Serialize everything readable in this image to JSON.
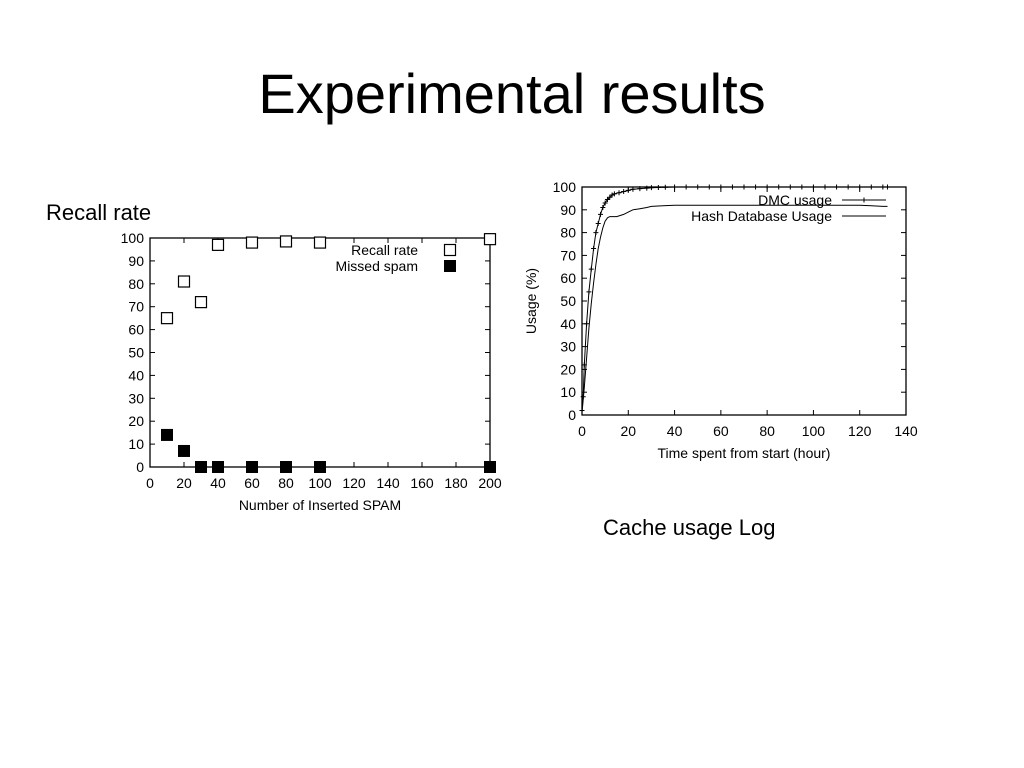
{
  "slide": {
    "title": "Experimental results",
    "recall_caption": "Recall rate",
    "cache_caption": "Cache usage Log"
  },
  "chart_data": [
    {
      "type": "scatter",
      "title": "",
      "xlabel": "Number of Inserted SPAM",
      "ylabel": "",
      "xlim": [
        0,
        200
      ],
      "ylim": [
        0,
        100
      ],
      "xticks": [
        0,
        20,
        40,
        60,
        80,
        100,
        120,
        140,
        160,
        180,
        200
      ],
      "yticks": [
        0,
        10,
        20,
        30,
        40,
        50,
        60,
        70,
        80,
        90,
        100
      ],
      "legend_position": "top-right",
      "grid": false,
      "series": [
        {
          "name": "Recall rate",
          "marker": "open-square",
          "x": [
            10,
            20,
            30,
            40,
            60,
            80,
            100,
            200
          ],
          "y": [
            65,
            81,
            72,
            97,
            98,
            98.5,
            98,
            99.5
          ]
        },
        {
          "name": "Missed spam",
          "marker": "filled-square",
          "x": [
            10,
            20,
            30,
            40,
            60,
            80,
            100,
            200
          ],
          "y": [
            14,
            7,
            0,
            0,
            0,
            0,
            0,
            0
          ]
        }
      ]
    },
    {
      "type": "line",
      "title": "",
      "xlabel": "Time spent from start (hour)",
      "ylabel": "Usage (%)",
      "xlim": [
        0,
        140
      ],
      "ylim": [
        0,
        100
      ],
      "xticks": [
        0,
        20,
        40,
        60,
        80,
        100,
        120,
        140
      ],
      "yticks": [
        0,
        10,
        20,
        30,
        40,
        50,
        60,
        70,
        80,
        90,
        100
      ],
      "legend_position": "top-right",
      "grid": false,
      "series": [
        {
          "name": "DMC usage",
          "marker": "plus",
          "x": [
            0,
            0.5,
            1,
            2,
            3,
            4,
            5,
            6,
            7,
            8,
            9,
            10,
            11,
            12,
            13,
            14,
            16,
            18,
            20,
            22,
            25,
            28,
            30,
            33,
            36,
            40,
            45,
            50,
            55,
            60,
            65,
            70,
            75,
            80,
            85,
            90,
            95,
            100,
            105,
            110,
            115,
            120,
            125,
            130,
            132
          ],
          "y": [
            2,
            8,
            22,
            40,
            54,
            64,
            73,
            80,
            84,
            88,
            91,
            93,
            94.5,
            95.5,
            96.5,
            97,
            97.5,
            98,
            98.5,
            99,
            99.3,
            99.5,
            99.7,
            99.8,
            99.9,
            100,
            100,
            100,
            100,
            100,
            100,
            100,
            100,
            100,
            100,
            100,
            100,
            100,
            100,
            100,
            100,
            100,
            100,
            100,
            100
          ]
        },
        {
          "name": "Hash Database Usage",
          "marker": "line",
          "x": [
            0,
            1,
            2,
            3,
            4,
            5,
            6,
            7,
            8,
            9,
            10,
            11,
            12,
            13,
            15,
            18,
            20,
            22,
            25,
            28,
            30,
            35,
            40,
            50,
            60,
            70,
            80,
            90,
            100,
            110,
            120,
            125,
            130,
            132
          ],
          "y": [
            1,
            12,
            25,
            38,
            49,
            58,
            66,
            73,
            78,
            82,
            85,
            86.5,
            87,
            87,
            87,
            88,
            89,
            90,
            90.5,
            91,
            91.5,
            91.8,
            92,
            92,
            92,
            92,
            92,
            92,
            92,
            92,
            92,
            91.8,
            91.5,
            91.5
          ]
        }
      ]
    }
  ]
}
